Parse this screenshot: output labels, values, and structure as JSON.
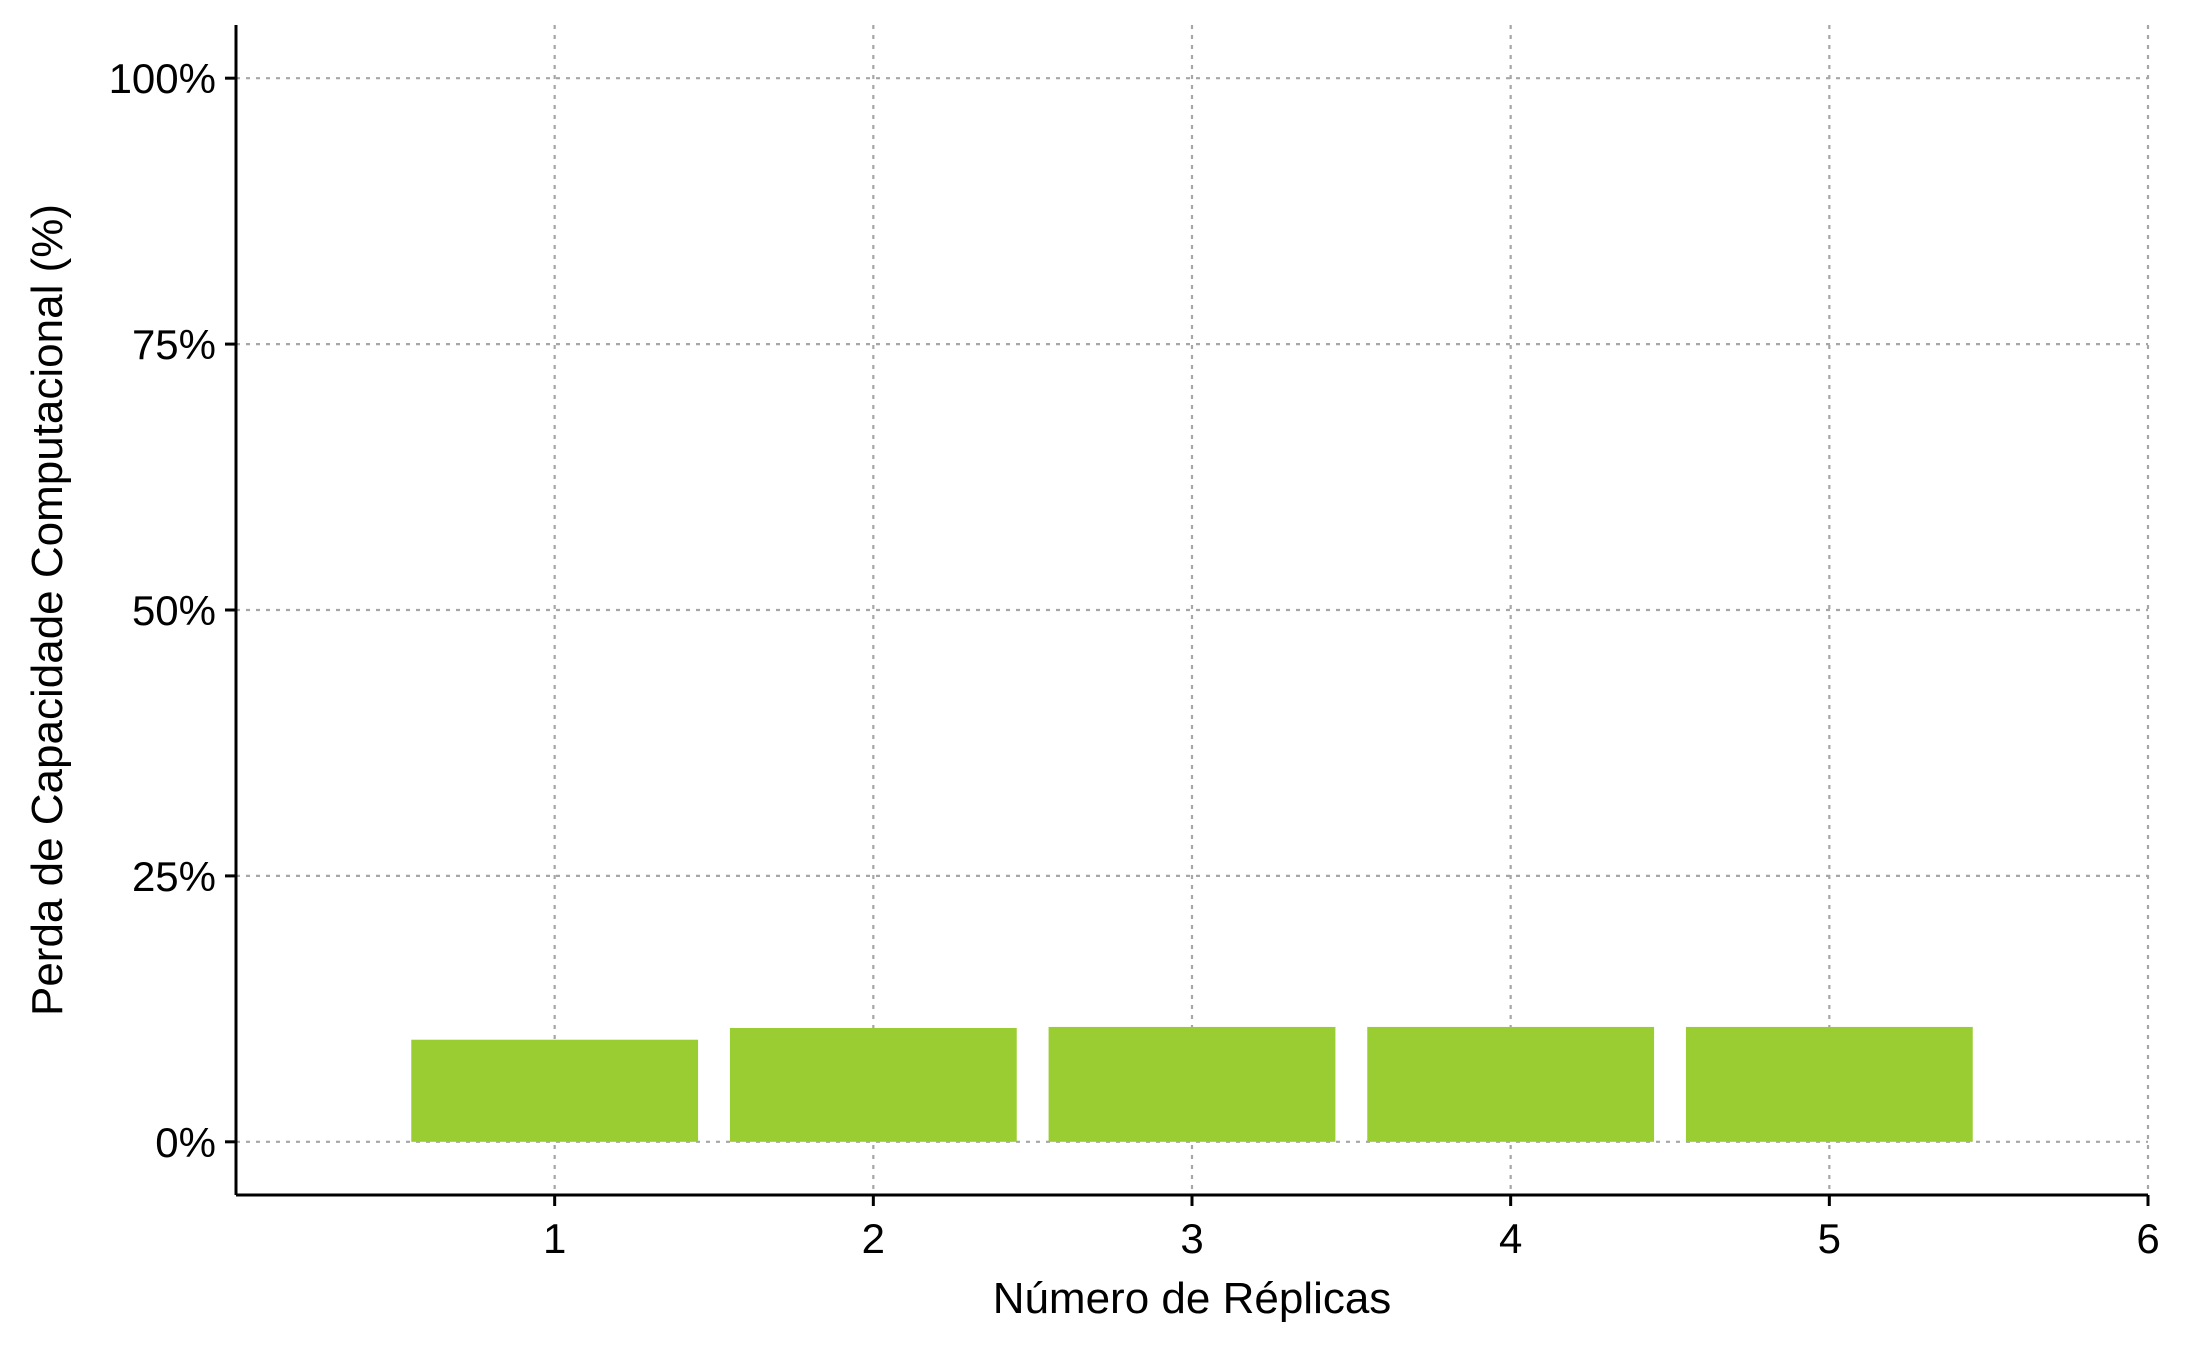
{
  "chart_data": {
    "type": "bar",
    "title": "",
    "xlabel": "Número de Réplicas",
    "ylabel": "Perda de Capacidade Computacional (%)",
    "categories": [
      1,
      2,
      3,
      4,
      5
    ],
    "values": [
      9.6,
      10.7,
      10.8,
      10.8,
      10.8
    ],
    "xlim": [
      0,
      6
    ],
    "ylim": [
      -5,
      105
    ],
    "x_ticks": [
      1,
      2,
      3,
      4,
      5,
      6
    ],
    "y_ticks": [
      0,
      25,
      50,
      75,
      100
    ],
    "x_tick_labels": [
      "1",
      "2",
      "3",
      "4",
      "5",
      "6"
    ],
    "y_tick_labels": [
      "0%",
      "25%",
      "50%",
      "75%",
      "100%"
    ],
    "bar_color": "#9acd32",
    "grid": true,
    "legend": "none"
  }
}
